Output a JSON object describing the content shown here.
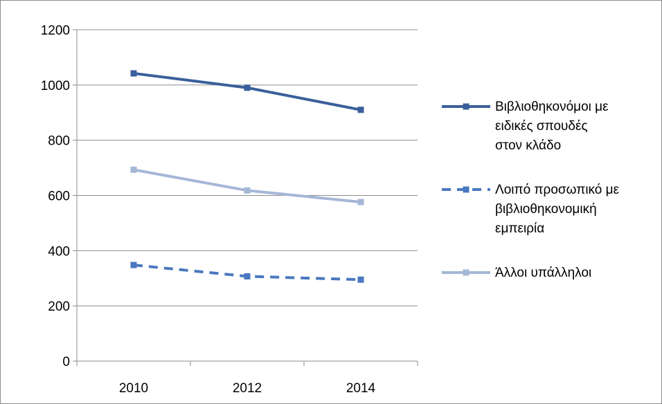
{
  "chart_data": {
    "type": "line",
    "title": "",
    "xlabel": "",
    "ylabel": "",
    "categories": [
      "2010",
      "2012",
      "2014"
    ],
    "ylim": [
      0,
      1200
    ],
    "yticks": [
      0,
      200,
      400,
      600,
      800,
      1000,
      1200
    ],
    "grid": true,
    "legend_position": "right",
    "series": [
      {
        "name": "Βιβλιοθηκονόμοι με ειδικές σπουδές στον κλάδο",
        "legend_lines": [
          "Βιβλιοθηκονόμοι με",
          "ειδικές σπουδές",
          "στον κλάδο"
        ],
        "values": [
          1042,
          990,
          910
        ],
        "color": "#3a5f9a",
        "dash": "solid"
      },
      {
        "name": "Λοιπό προσωπικό με βιβλιοθηκονομική εμπειρία",
        "legend_lines": [
          "Λοιπό προσωπικό με",
          "βιβλιοθηκονομική",
          "εμπειρία"
        ],
        "values": [
          348,
          307,
          295
        ],
        "color": "#4a78c0",
        "dash": "dashed"
      },
      {
        "name": "Άλλοι υπάλληλοι",
        "legend_lines": [
          "Άλλοι υπάλληλοι"
        ],
        "values": [
          693,
          618,
          576
        ],
        "color": "#a5b7d6",
        "dash": "solid"
      }
    ]
  }
}
